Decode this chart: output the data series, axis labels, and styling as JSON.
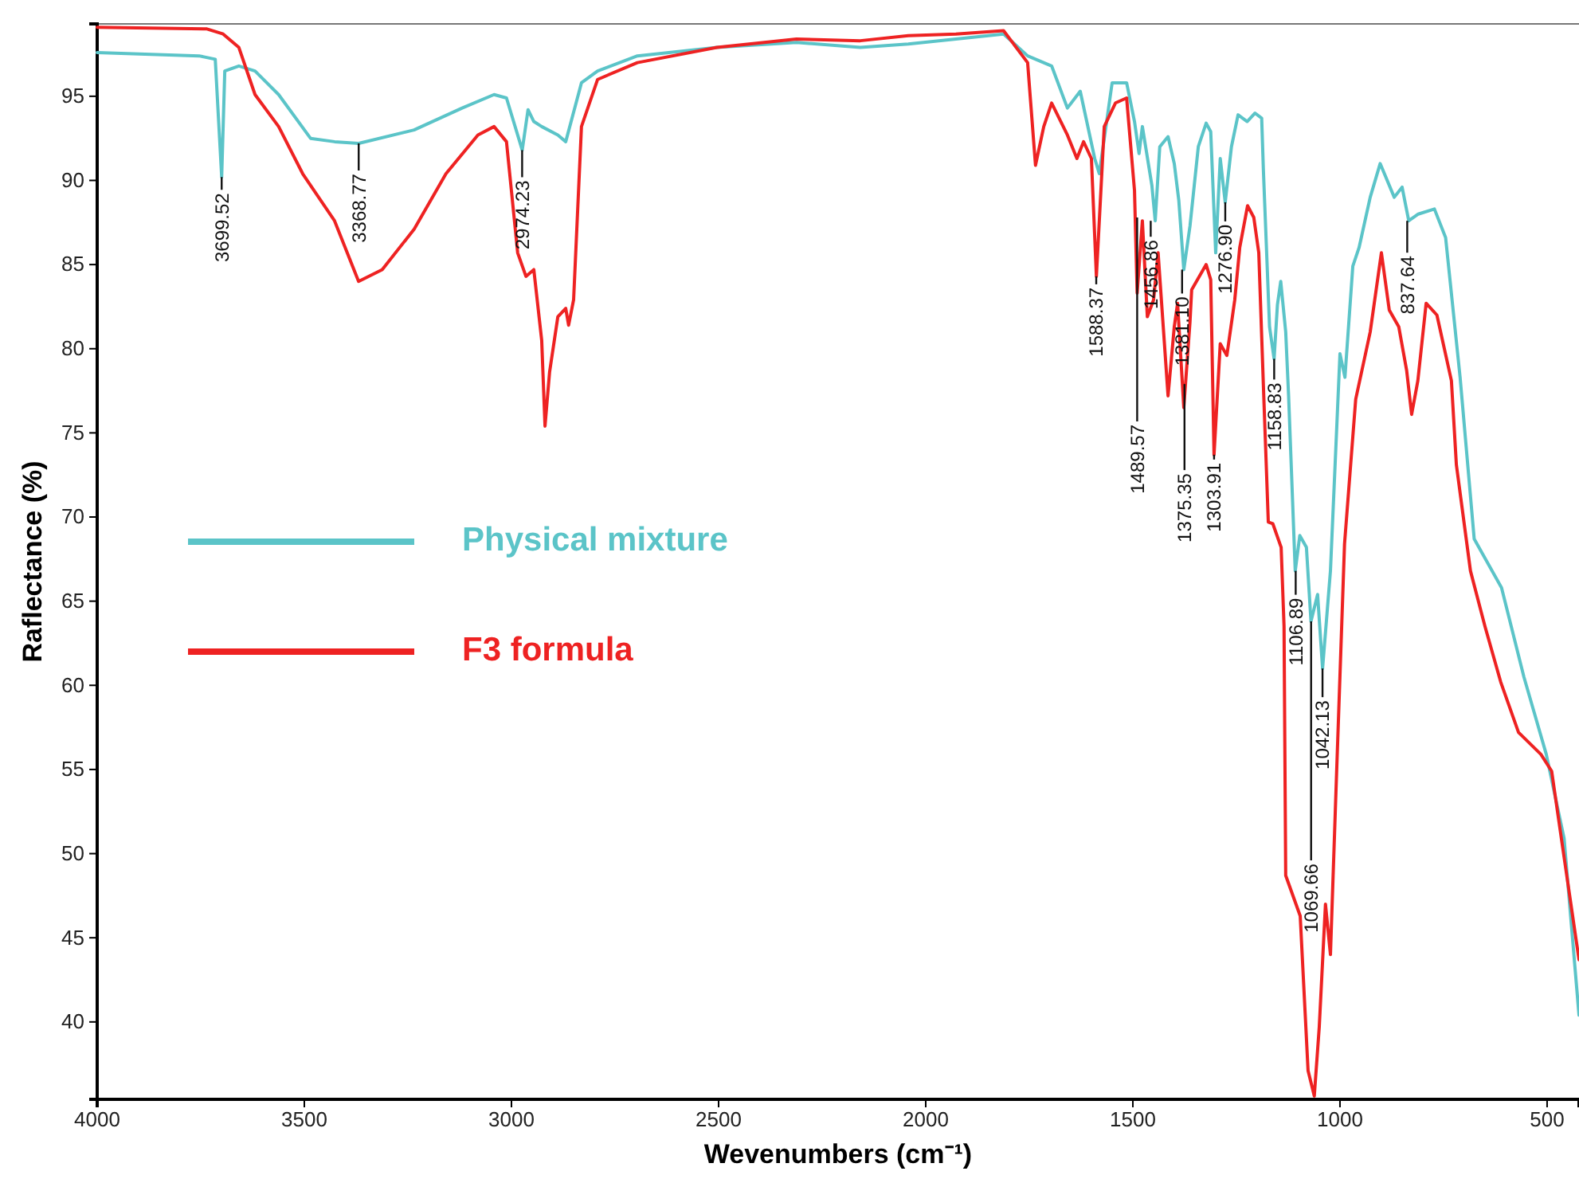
{
  "chart_data": {
    "type": "line",
    "xlabel": "Wevenumbers (cm⁻¹)",
    "ylabel": "Raflectance (%)",
    "xlim": [
      4000,
      423
    ],
    "ylim": [
      35.4,
      99.3
    ],
    "xticks": [
      4000,
      3500,
      3000,
      2500,
      2000,
      1500,
      1000,
      500
    ],
    "yticks": [
      40,
      45,
      50,
      55,
      60,
      65,
      70,
      75,
      80,
      85,
      90,
      95
    ],
    "grid": false,
    "legend": "left",
    "marker": "none",
    "line_style": "solid",
    "series": [
      {
        "name": "Physical mixture",
        "color": "#5bc4c8",
        "x": [
          4000,
          3754,
          3715,
          3699.5,
          3692,
          3658,
          3619,
          3562,
          3485,
          3427,
          3368.8,
          3235,
          3119,
          3042,
          3012,
          2974,
          2960,
          2946,
          2927,
          2888,
          2869,
          2831,
          2792,
          2696,
          2504,
          2312,
          2158,
          2042,
          1927,
          1812,
          1754,
          1696,
          1658,
          1627,
          1592,
          1581,
          1550,
          1515,
          1496,
          1485,
          1477,
          1454,
          1446,
          1435,
          1415,
          1400,
          1389,
          1377,
          1362,
          1342,
          1323,
          1312,
          1300,
          1289,
          1277,
          1262,
          1246,
          1224,
          1205,
          1189,
          1185,
          1170,
          1159,
          1151,
          1143,
          1131,
          1124,
          1108,
          1097,
          1081,
          1070,
          1054,
          1042,
          1023,
          1000,
          988,
          969,
          954,
          927,
          903,
          869,
          850,
          834,
          811,
          772,
          745,
          710,
          676,
          610,
          556,
          502,
          459,
          423
        ],
        "values": [
          97.6,
          97.4,
          97.2,
          90.2,
          96.5,
          96.8,
          96.5,
          95.1,
          92.5,
          92.3,
          92.2,
          93.0,
          94.3,
          95.1,
          94.9,
          91.8,
          94.2,
          93.5,
          93.2,
          92.7,
          92.3,
          95.8,
          96.5,
          97.4,
          97.9,
          98.2,
          97.9,
          98.1,
          98.4,
          98.7,
          97.4,
          96.8,
          94.3,
          95.3,
          91.3,
          90.4,
          95.8,
          95.8,
          93.5,
          91.6,
          93.2,
          89.7,
          87.6,
          92.0,
          92.6,
          91.0,
          88.8,
          84.7,
          87.3,
          92.0,
          93.4,
          92.9,
          85.7,
          91.3,
          88.7,
          92.0,
          93.9,
          93.5,
          94.0,
          93.7,
          90.7,
          81.3,
          79.4,
          82.6,
          84.0,
          81.0,
          77.2,
          66.8,
          68.9,
          68.2,
          63.8,
          65.4,
          61.0,
          66.8,
          79.7,
          78.3,
          84.9,
          86.0,
          89.0,
          91.0,
          89.0,
          89.6,
          87.6,
          88.0,
          88.3,
          86.6,
          78.3,
          68.7,
          65.8,
          60.5,
          55.9,
          50.9,
          40.4
        ]
      },
      {
        "name": "F3 formula",
        "color": "#ee2222",
        "x": [
          4000,
          3735,
          3696,
          3658,
          3619,
          3562,
          3504,
          3427,
          3369,
          3312,
          3235,
          3158,
          3081,
          3042,
          3012,
          2985,
          2965,
          2946,
          2927,
          2919,
          2908,
          2888,
          2869,
          2862,
          2850,
          2831,
          2792,
          2696,
          2504,
          2312,
          2158,
          2042,
          1927,
          1812,
          1754,
          1735,
          1715,
          1696,
          1658,
          1635,
          1619,
          1600,
          1588,
          1569,
          1542,
          1515,
          1496,
          1489.6,
          1477,
          1465,
          1450,
          1439,
          1415,
          1400,
          1392,
          1377,
          1362,
          1358,
          1323,
          1312,
          1304,
          1289,
          1273,
          1254,
          1242,
          1223,
          1208,
          1196,
          1185,
          1173,
          1162,
          1142,
          1135,
          1131,
          1096,
          1077,
          1062,
          1050,
          1035,
          1023,
          1008,
          989,
          962,
          927,
          900,
          881,
          858,
          839,
          827,
          812,
          792,
          766,
          731,
          719,
          685,
          650,
          612,
          569,
          515,
          489,
          462,
          423
        ],
        "values": [
          99.1,
          99.0,
          98.7,
          97.9,
          95.1,
          93.2,
          90.4,
          87.6,
          84.0,
          84.7,
          87.1,
          90.4,
          92.7,
          93.2,
          92.3,
          85.7,
          84.3,
          84.7,
          80.5,
          75.4,
          78.6,
          81.9,
          82.4,
          81.4,
          82.9,
          93.2,
          96.0,
          97.0,
          97.9,
          98.4,
          98.3,
          98.6,
          98.7,
          98.9,
          97.0,
          90.9,
          93.2,
          94.6,
          92.7,
          91.3,
          92.3,
          91.3,
          84.3,
          93.2,
          94.6,
          94.9,
          89.4,
          83.3,
          87.6,
          81.9,
          82.9,
          85.7,
          77.2,
          81.3,
          82.7,
          76.5,
          81.6,
          83.5,
          85.0,
          84.1,
          73.7,
          80.3,
          79.6,
          82.9,
          86.0,
          88.5,
          87.8,
          85.7,
          77.9,
          69.7,
          69.6,
          68.2,
          63.5,
          48.7,
          46.3,
          37.1,
          35.6,
          39.7,
          47.0,
          44.0,
          54.9,
          68.4,
          77.0,
          81.0,
          85.7,
          82.3,
          81.3,
          78.7,
          76.1,
          78.1,
          82.7,
          82.0,
          78.1,
          73.1,
          66.8,
          63.5,
          60.2,
          57.2,
          55.9,
          54.9,
          50.3,
          43.7
        ]
      }
    ],
    "annotations": [
      {
        "text": "3699.52",
        "x": 3699.52,
        "y": 90.2
      },
      {
        "text": "3368.77",
        "x": 3368.77,
        "y": 92.2
      },
      {
        "text": "2974.23",
        "x": 2974.23,
        "y": 91.8
      },
      {
        "text": "1588.37",
        "x": 1588.37,
        "y": 84.3
      },
      {
        "text": "1489.57",
        "x": 1489.57,
        "y": 87.8
      },
      {
        "text": "1456.86",
        "x": 1456.86,
        "y": 87.6
      },
      {
        "text": "1381.10",
        "x": 1381.1,
        "y": 84.7
      },
      {
        "text": "1375.35",
        "x": 1375.35,
        "y": 77.9
      },
      {
        "text": "1303.91",
        "x": 1303.91,
        "y": 73.7
      },
      {
        "text": "1276.90",
        "x": 1276.9,
        "y": 88.7
      },
      {
        "text": "1158.83",
        "x": 1158.83,
        "y": 79.4
      },
      {
        "text": "1106.89",
        "x": 1106.89,
        "y": 66.8
      },
      {
        "text": "1069.66",
        "x": 1069.66,
        "y": 63.8
      },
      {
        "text": "1042.13",
        "x": 1042.13,
        "y": 61.0
      },
      {
        "text": "837.64",
        "x": 837.64,
        "y": 87.6
      }
    ]
  }
}
